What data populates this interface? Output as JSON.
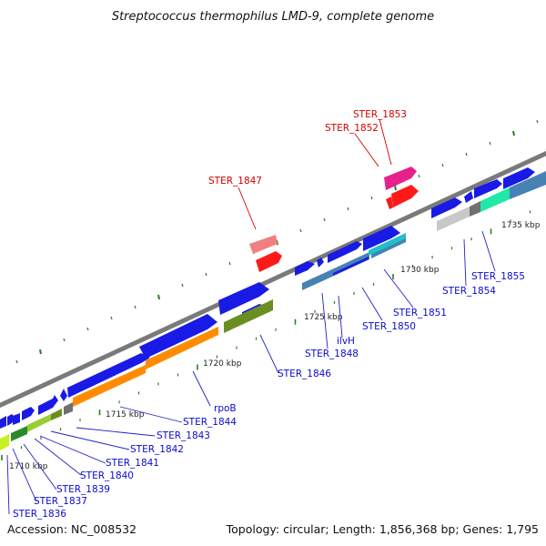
{
  "title": "Streptococcus thermophilus LMD-9, complete genome",
  "footer": {
    "accession": "Accession: NC_008532",
    "summary": "Topology: circular; Length: 1,856,368 bp; Genes: 1,795"
  },
  "colors": {
    "backbone": "#808080",
    "tick": "#2a7d2a",
    "forward_label": "#0a0ad0",
    "highlight_label": "#d40000",
    "leader_blue": "#2020c8",
    "leader_red": "#d40000"
  },
  "kbp_labels": [
    "1710 kbp",
    "1715 kbp",
    "1720 kbp",
    "1725 kbp",
    "1730 kbp",
    "1735 kbp"
  ],
  "gene_labels": [
    {
      "text": "STER_1836",
      "color": "blue"
    },
    {
      "text": "STER_1837",
      "color": "blue"
    },
    {
      "text": "STER_1839",
      "color": "blue"
    },
    {
      "text": "STER_1840",
      "color": "blue"
    },
    {
      "text": "STER_1841",
      "color": "blue"
    },
    {
      "text": "STER_1842",
      "color": "blue"
    },
    {
      "text": "STER_1843",
      "color": "blue"
    },
    {
      "text": "STER_1844",
      "color": "blue"
    },
    {
      "text": "rpoB",
      "color": "blue"
    },
    {
      "text": "STER_1846",
      "color": "blue"
    },
    {
      "text": "STER_1847",
      "color": "red"
    },
    {
      "text": "STER_1848",
      "color": "blue"
    },
    {
      "text": "ilvH",
      "color": "blue"
    },
    {
      "text": "STER_1850",
      "color": "blue"
    },
    {
      "text": "STER_1851",
      "color": "blue"
    },
    {
      "text": "STER_1852",
      "color": "red"
    },
    {
      "text": "STER_1853",
      "color": "red"
    },
    {
      "text": "STER_1854",
      "color": "blue"
    },
    {
      "text": "STER_1855",
      "color": "blue"
    }
  ]
}
